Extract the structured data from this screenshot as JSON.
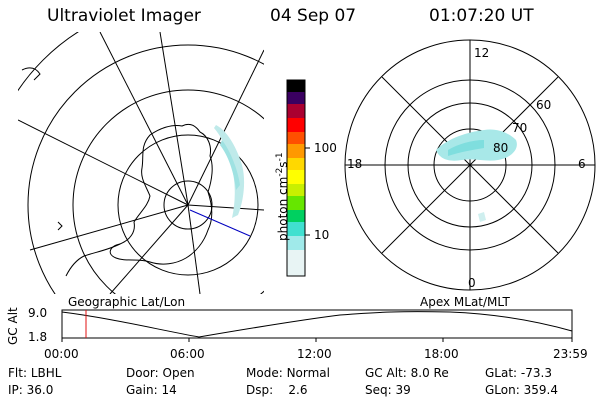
{
  "header": {
    "instrument": "Ultraviolet Imager",
    "date": "04 Sep 07",
    "time": "01:07:20 UT"
  },
  "colorbar": {
    "label": "photon cm",
    "label_exp1": "-2",
    "label_mid": "s",
    "label_exp2": "-1",
    "ticks": [
      "100",
      "10"
    ]
  },
  "polar_plot": {
    "labels": [
      "12",
      "18",
      "6",
      "0",
      "60",
      "70",
      "80"
    ]
  },
  "panels": {
    "left_label": "Geographic Lat/Lon",
    "right_label": "Apex MLat/MLT"
  },
  "altitude_plot": {
    "axis_title": "GC Alt",
    "y_ticks": [
      "9.0",
      "1.8"
    ],
    "x_ticks": [
      "00:00",
      "06:00",
      "12:00",
      "18:00",
      "23:59"
    ],
    "current_time_marker": "01:07:20"
  },
  "info": {
    "row1": [
      {
        "label": "Flt:",
        "value": "LBHL"
      },
      {
        "label": "Door:",
        "value": "Open"
      },
      {
        "label": "Mode:",
        "value": "Normal"
      },
      {
        "label": "GC Alt:",
        "value": "8.0 Re"
      },
      {
        "label": "GLat:",
        "value": "-73.3"
      }
    ],
    "row2": [
      {
        "label": "IP:",
        "value": "36.0"
      },
      {
        "label": "Gain:",
        "value": "14"
      },
      {
        "label": "Dsp:",
        "value": "2.6"
      },
      {
        "label": "Seq:",
        "value": "39"
      },
      {
        "label": "GLon:",
        "value": "359.4"
      }
    ]
  },
  "colors": {
    "aurora": "#bfeaea",
    "aurora_dense": "#7fdede",
    "marker": "#e01010",
    "coastline": "#000000",
    "terminator": "#0000c0"
  }
}
